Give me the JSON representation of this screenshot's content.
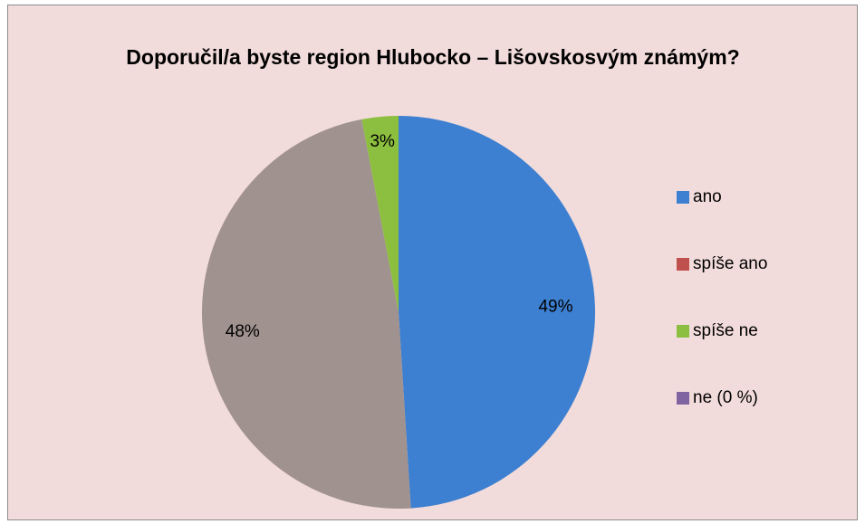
{
  "chart_data": {
    "type": "pie",
    "title": "Doporučil/a byste region Hlubocko – Lišovskosvým známým?",
    "categories": [
      "ano",
      "spíše ano",
      "spíše ne",
      "ne (0 %)"
    ],
    "values": [
      49,
      48,
      3,
      0
    ],
    "value_labels": [
      "49%",
      "48%",
      "3%",
      null
    ],
    "colors": [
      "#3d7fd0",
      "#a0928f",
      "#8cbf3f",
      "#8064a2"
    ],
    "legend_colors": [
      "#3d7fd0",
      "#c0504d",
      "#8cbf3f",
      "#8064a2"
    ],
    "legend": "right"
  }
}
